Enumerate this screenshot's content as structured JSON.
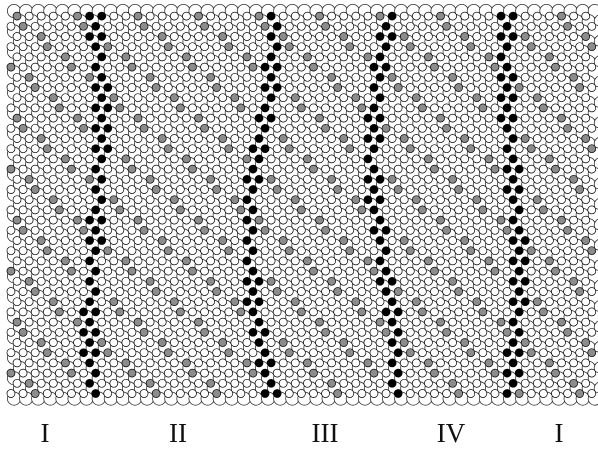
{
  "figure": {
    "description_free": true,
    "region_labels": [
      "I",
      "II",
      "III",
      "IV",
      "I"
    ],
    "colors": {
      "background": "#ffffff",
      "large_atom_stroke": "#333333",
      "small_atom_fill": "#ffffff",
      "substitutional_atom_fill": "#8c8c8c",
      "boundary_atom_fill": "#000000",
      "label_color": "#111111"
    }
  }
}
